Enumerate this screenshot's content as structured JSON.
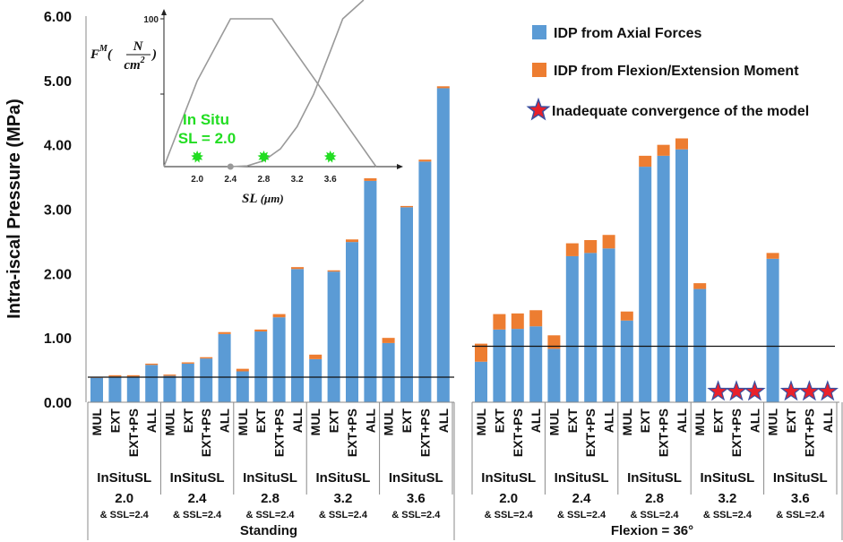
{
  "chart_data": {
    "type": "bar",
    "stacked": true,
    "ylabel": "Intra-iscal Pressure (MPa)",
    "ylim": [
      0,
      6
    ],
    "yticks": [
      "0.00",
      "1.00",
      "2.00",
      "3.00",
      "4.00",
      "5.00",
      "6.00"
    ],
    "categories": [
      "MUL",
      "EXT",
      "EXT+PS",
      "ALL"
    ],
    "conditions": [
      {
        "label": "Standing",
        "threshold": 0.39,
        "groups": [
          {
            "line1": "InSituSL",
            "line2": "2.0",
            "sub": "& SSL=2.4",
            "axial": [
              0.38,
              0.4,
              0.4,
              0.58
            ],
            "flexion": [
              0.01,
              0.02,
              0.02,
              0.02
            ],
            "converged": [
              true,
              true,
              true,
              true
            ]
          },
          {
            "line1": "InSituSL",
            "line2": "2.4",
            "sub": "& SSL=2.4",
            "axial": [
              0.41,
              0.6,
              0.68,
              1.06
            ],
            "flexion": [
              0.02,
              0.02,
              0.02,
              0.03
            ],
            "converged": [
              true,
              true,
              true,
              true
            ]
          },
          {
            "line1": "InSituSL",
            "line2": "2.8",
            "sub": "& SSL=2.4",
            "axial": [
              0.48,
              1.1,
              1.32,
              2.07
            ],
            "flexion": [
              0.04,
              0.03,
              0.05,
              0.03
            ],
            "converged": [
              true,
              true,
              true,
              true
            ]
          },
          {
            "line1": "InSituSL",
            "line2": "3.2",
            "sub": "& SSL=2.4",
            "axial": [
              0.67,
              2.03,
              2.49,
              3.44
            ],
            "flexion": [
              0.07,
              0.02,
              0.04,
              0.04
            ],
            "converged": [
              true,
              true,
              true,
              true
            ]
          },
          {
            "line1": "InSituSL",
            "line2": "3.6",
            "sub": "& SSL=2.4",
            "axial": [
              0.92,
              3.03,
              3.74,
              4.88
            ],
            "flexion": [
              0.08,
              0.02,
              0.03,
              0.03
            ],
            "converged": [
              true,
              true,
              true,
              true
            ]
          }
        ]
      },
      {
        "label": "Flexion = 36°",
        "threshold": 0.87,
        "groups": [
          {
            "line1": "InSituSL",
            "line2": "2.0",
            "sub": "& SSL=2.4",
            "axial": [
              0.63,
              1.13,
              1.14,
              1.18
            ],
            "flexion": [
              0.28,
              0.24,
              0.24,
              0.25
            ],
            "converged": [
              true,
              true,
              true,
              true
            ]
          },
          {
            "line1": "InSituSL",
            "line2": "2.4",
            "sub": "& SSL=2.4",
            "axial": [
              0.83,
              2.27,
              2.32,
              2.39
            ],
            "flexion": [
              0.21,
              0.2,
              0.2,
              0.21
            ],
            "converged": [
              true,
              true,
              true,
              true
            ]
          },
          {
            "line1": "InSituSL",
            "line2": "2.8",
            "sub": "& SSL=2.4",
            "axial": [
              1.27,
              3.66,
              3.83,
              3.93
            ],
            "flexion": [
              0.14,
              0.17,
              0.17,
              0.17
            ],
            "converged": [
              true,
              true,
              true,
              true
            ]
          },
          {
            "line1": "InSituSL",
            "line2": "3.2",
            "sub": "& SSL=2.4",
            "axial": [
              1.76,
              0,
              0,
              0
            ],
            "flexion": [
              0.09,
              0,
              0,
              0
            ],
            "converged": [
              true,
              false,
              false,
              false
            ]
          },
          {
            "line1": "InSituSL",
            "line2": "3.6",
            "sub": "& SSL=2.4",
            "axial": [
              2.23,
              0,
              0,
              0
            ],
            "flexion": [
              0.09,
              0,
              0,
              0
            ],
            "converged": [
              true,
              false,
              false,
              false
            ]
          }
        ]
      }
    ],
    "legend": [
      {
        "label": "IDP from Axial Forces",
        "color": "#5b9bd5"
      },
      {
        "label": "IDP from Flexion/Extension Moment",
        "color": "#ed7d31"
      },
      {
        "label": "Inadequate convergence of the model",
        "color": "#e8212b"
      }
    ],
    "inset": {
      "ylabel": "F^M (N/cm²)",
      "ylabel_parts": {
        "f": "F",
        "m": "M",
        "num": "N",
        "den": "cm",
        "exp": "2"
      },
      "xlabel": "SL (μm)",
      "xlabel_parts": {
        "sl": "SL",
        "unit": "μm"
      },
      "ytick": "100",
      "xticks": [
        "2.0",
        "2.4",
        "2.8",
        "3.2",
        "3.6"
      ],
      "xrange": [
        1.6,
        4.4
      ],
      "yrange": [
        0,
        100
      ],
      "active_curve": [
        [
          1.6,
          0
        ],
        [
          2.0,
          58
        ],
        [
          2.4,
          100
        ],
        [
          2.9,
          100
        ],
        [
          4.15,
          0
        ]
      ],
      "passive_curve": [
        [
          2.4,
          0
        ],
        [
          2.6,
          0.5
        ],
        [
          2.8,
          4
        ],
        [
          3.0,
          12
        ],
        [
          3.2,
          27
        ],
        [
          3.4,
          49
        ],
        [
          3.6,
          78
        ],
        [
          3.75,
          100
        ],
        [
          4.0,
          140
        ]
      ],
      "annotation_line1": "In Situ",
      "annotation_line2": "SL = 2.0",
      "annotation_color": "#22dd22",
      "star_markers": [
        2.0,
        2.8,
        3.6
      ],
      "dot_marker": 2.4
    }
  }
}
